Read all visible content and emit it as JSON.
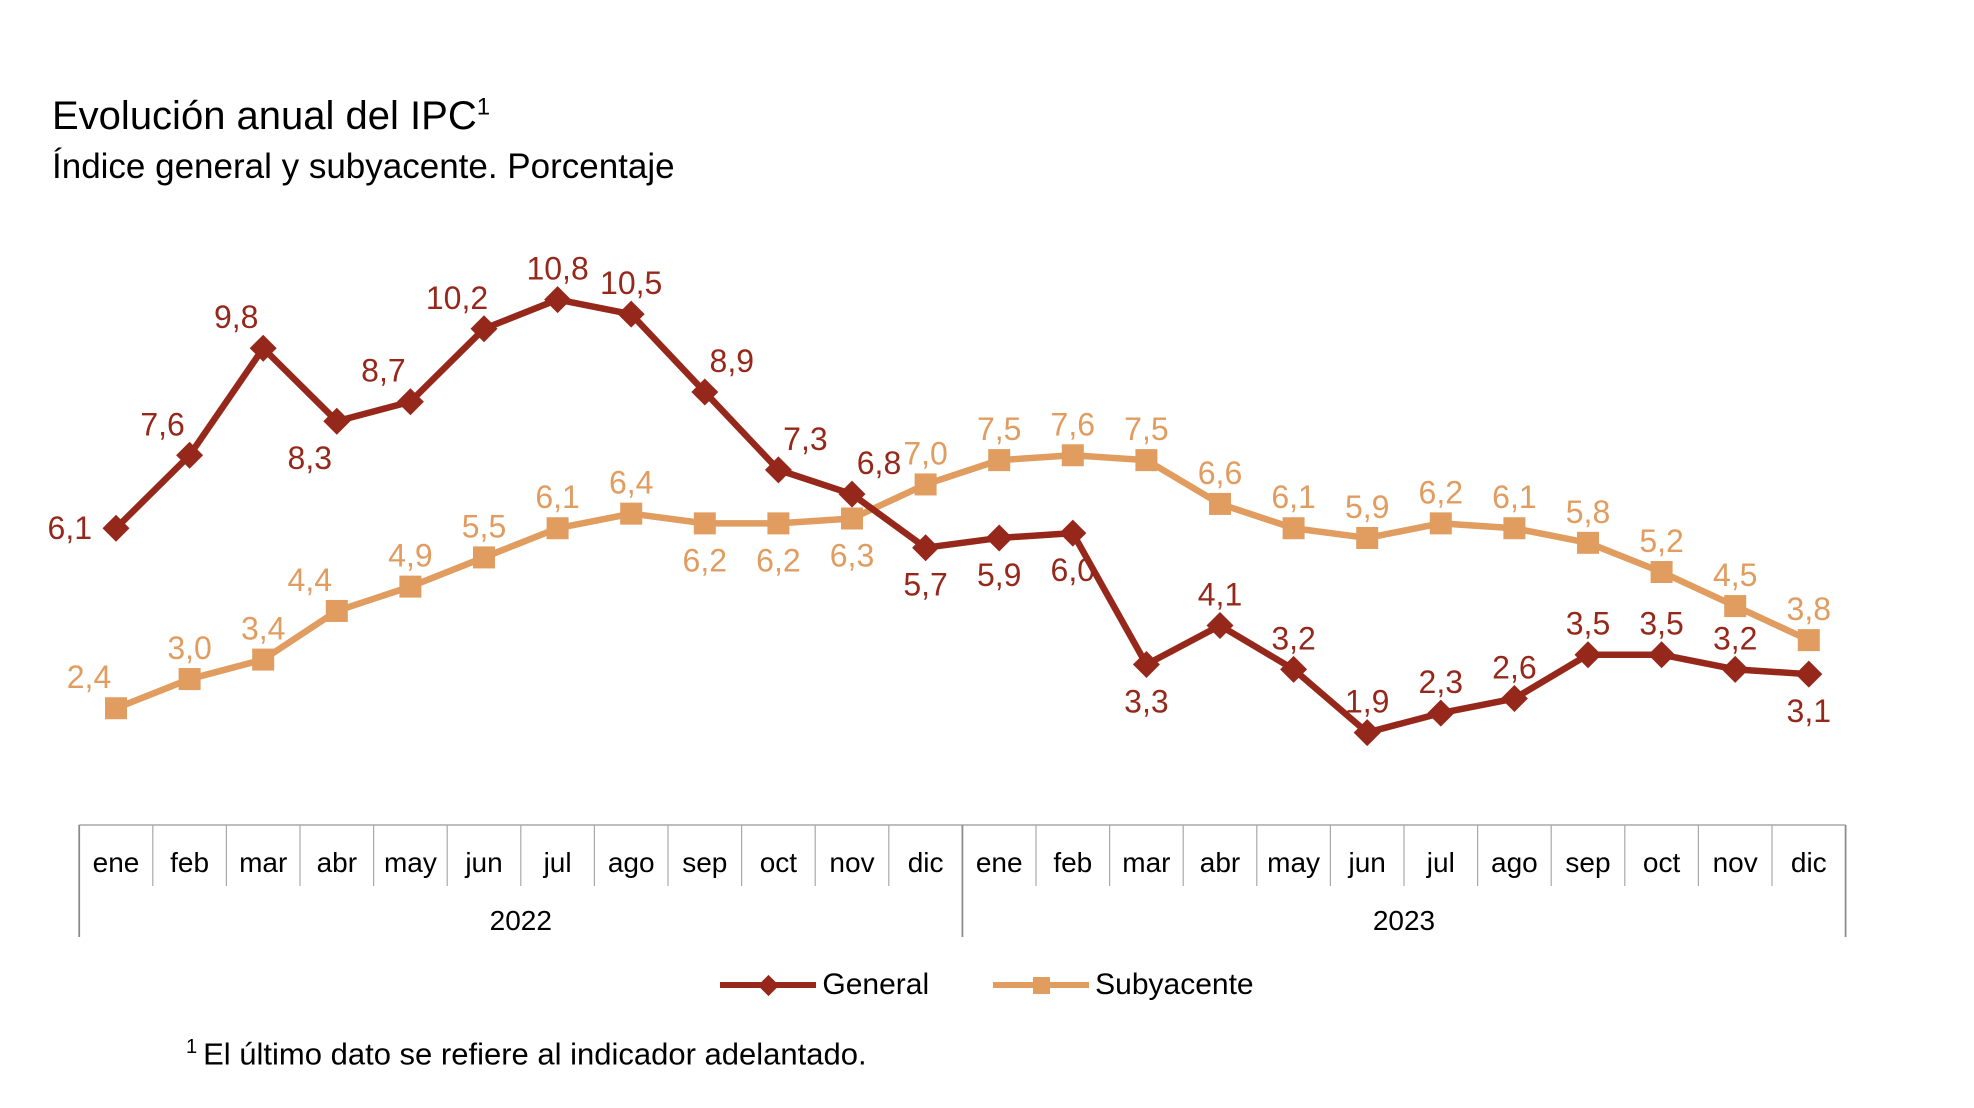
{
  "header": {
    "title": "Evolución anual del IPC",
    "title_sup": "1",
    "subtitle": "Índice general y subyacente. Porcentaje"
  },
  "chart_data": {
    "type": "line",
    "title": "Evolución anual del IPC",
    "subtitle": "Índice general y subyacente. Porcentaje",
    "unit": "percent",
    "decimal_separator": ",",
    "categories": [
      "ene",
      "feb",
      "mar",
      "abr",
      "may",
      "jun",
      "jul",
      "ago",
      "sep",
      "oct",
      "nov",
      "dic",
      "ene",
      "feb",
      "mar",
      "abr",
      "may",
      "jun",
      "jul",
      "ago",
      "sep",
      "oct",
      "nov",
      "dic"
    ],
    "year_groups": [
      {
        "label": "2022",
        "months": 12
      },
      {
        "label": "2023",
        "months": 12
      }
    ],
    "series": [
      {
        "name": "Subyacente",
        "color": "#e19c60",
        "marker": "square",
        "values": [
          2.4,
          3.0,
          3.4,
          4.4,
          4.9,
          5.5,
          6.1,
          6.4,
          6.2,
          6.2,
          6.3,
          7.0,
          7.5,
          7.6,
          7.5,
          6.6,
          6.1,
          5.9,
          6.2,
          6.1,
          5.8,
          5.2,
          4.5,
          3.8
        ],
        "label_sides": [
          "above-left",
          "above",
          "above",
          "above-left",
          "above",
          "above",
          "above",
          "above",
          "below",
          "below",
          "below",
          "above",
          "above",
          "above",
          "above",
          "above",
          "above",
          "above",
          "above",
          "above",
          "above",
          "above",
          "above",
          "above"
        ]
      },
      {
        "name": "General",
        "color": "#96281b",
        "marker": "diamond",
        "values": [
          6.1,
          7.6,
          9.8,
          8.3,
          8.7,
          10.2,
          10.8,
          10.5,
          8.9,
          7.3,
          6.8,
          5.7,
          5.9,
          6.0,
          3.3,
          4.1,
          3.2,
          1.9,
          2.3,
          2.6,
          3.5,
          3.5,
          3.2,
          3.1
        ],
        "label_sides": [
          "left",
          "above-left",
          "above-left",
          "below-left",
          "above-left",
          "above-left",
          "above",
          "above",
          "above-right",
          "above-right",
          "above-right",
          "below",
          "below",
          "below",
          "below",
          "above",
          "above",
          "above",
          "above",
          "above",
          "above",
          "above",
          "above",
          "below"
        ]
      }
    ],
    "ylim": [
      0,
      12
    ],
    "grid": false,
    "y_axis_visible": false,
    "legend_position": "bottom"
  },
  "legend": {
    "items": [
      {
        "label": "General",
        "series": "General"
      },
      {
        "label": "Subyacente",
        "series": "Subyacente"
      }
    ]
  },
  "footnote": {
    "sup": "1",
    "text": "El último dato se refiere al indicador adelantado."
  },
  "axis": {
    "line_color": "#a9a9a9",
    "border_color": "#8c8c8c",
    "text_color": "#000000"
  }
}
